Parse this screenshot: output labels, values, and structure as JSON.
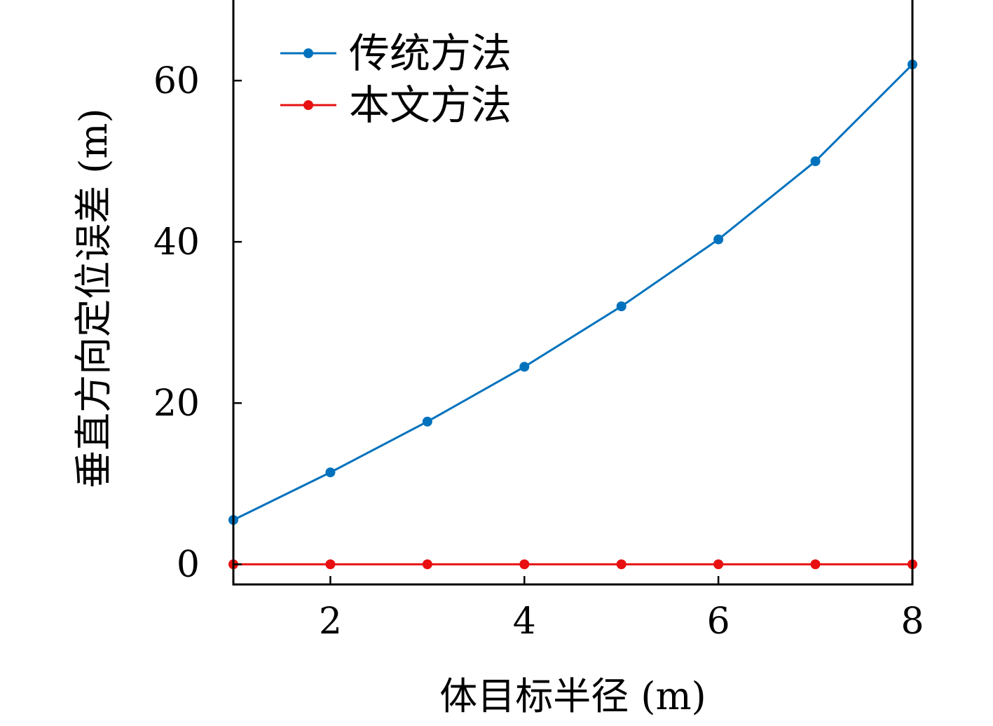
{
  "chart_data": {
    "type": "line",
    "xlabel": "体目标半径 (m)",
    "ylabel": "垂直方向定位误差 (m)",
    "x": [
      1,
      2,
      3,
      4,
      5,
      6,
      7,
      8
    ],
    "xlim": [
      1,
      8
    ],
    "ylim": [
      -2.5,
      70
    ],
    "xticks": [
      2,
      4,
      6,
      8
    ],
    "yticks": [
      0,
      20,
      40,
      60
    ],
    "xtick_labels": [
      "2",
      "4",
      "6",
      "8"
    ],
    "ytick_labels": [
      "0",
      "20",
      "40",
      "60"
    ],
    "grid": false,
    "legend_position": "top-left",
    "series": [
      {
        "name": "传统方法",
        "color": "#0072bd",
        "values": [
          5.5,
          11.4,
          17.7,
          24.5,
          32.0,
          40.3,
          50.0,
          62.0
        ]
      },
      {
        "name": "本文方法",
        "color": "#e81010",
        "values": [
          0,
          0,
          0,
          0,
          0,
          0,
          0,
          0
        ]
      }
    ]
  }
}
